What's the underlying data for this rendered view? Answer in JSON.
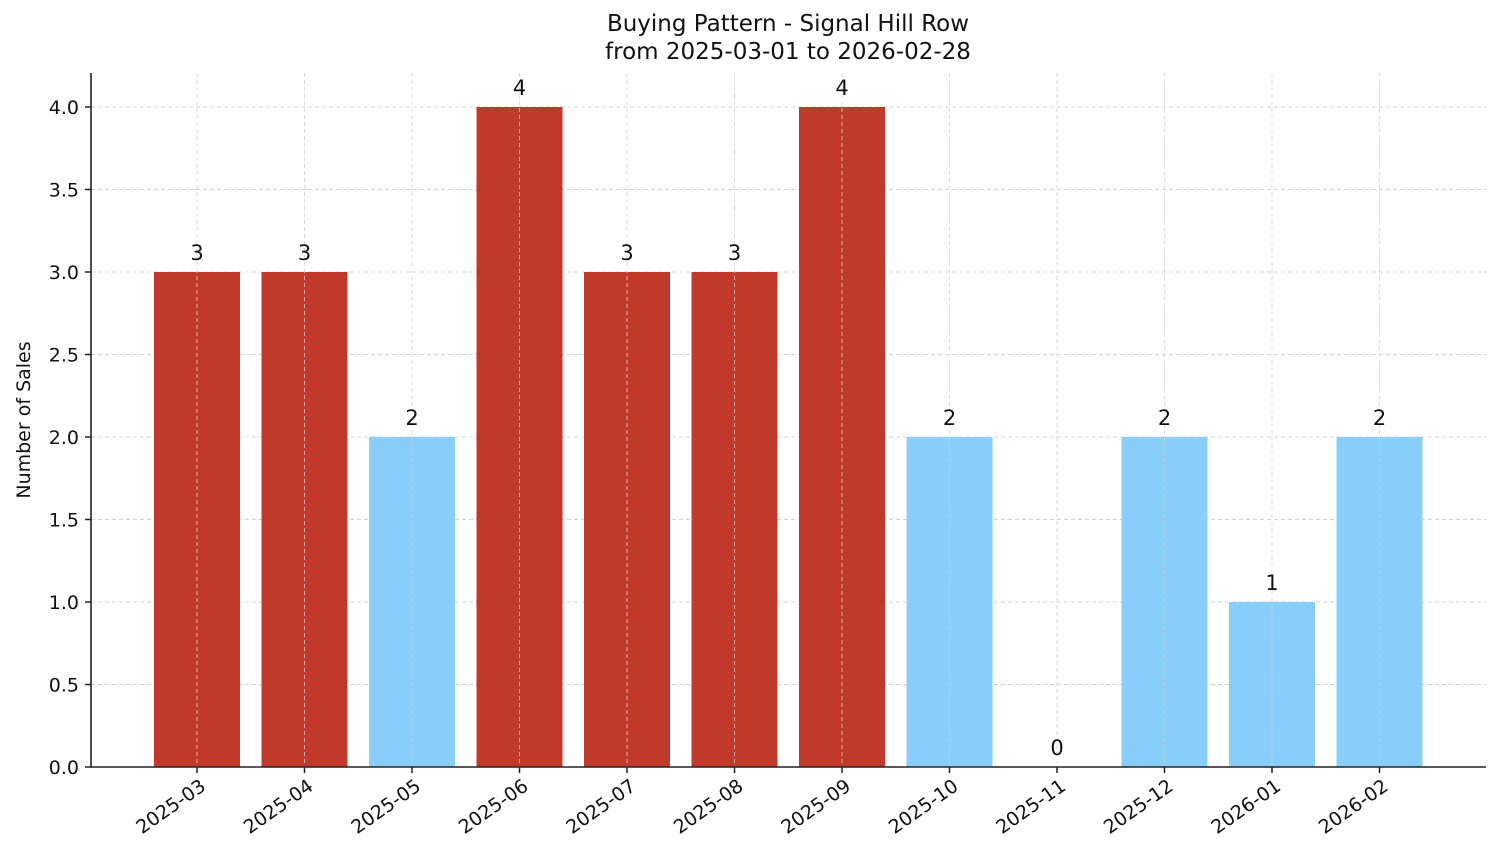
{
  "chart_data": {
    "type": "bar",
    "title": "Buying Pattern - Signal Hill Row",
    "subtitle": "from 2025-03-01 to 2026-02-28",
    "xlabel": "",
    "ylabel": "Number of Sales",
    "ylim": [
      0,
      4.2
    ],
    "yticks": [
      "0.0",
      "0.5",
      "1.0",
      "1.5",
      "2.0",
      "2.5",
      "3.0",
      "3.5",
      "4.0"
    ],
    "grid": true,
    "legend": null,
    "categories": [
      "2025-03",
      "2025-04",
      "2025-05",
      "2025-06",
      "2025-07",
      "2025-08",
      "2025-09",
      "2025-10",
      "2025-11",
      "2025-12",
      "2026-01",
      "2026-02"
    ],
    "values": [
      3,
      3,
      2,
      4,
      3,
      3,
      4,
      2,
      0,
      2,
      1,
      2
    ],
    "bar_colors": [
      "#c0392b",
      "#c0392b",
      "#87cefa",
      "#c0392b",
      "#c0392b",
      "#c0392b",
      "#c0392b",
      "#87cefa",
      "#87cefa",
      "#87cefa",
      "#87cefa",
      "#87cefa"
    ],
    "colors": {
      "high": "#c0392b",
      "low": "#87cefa"
    }
  }
}
